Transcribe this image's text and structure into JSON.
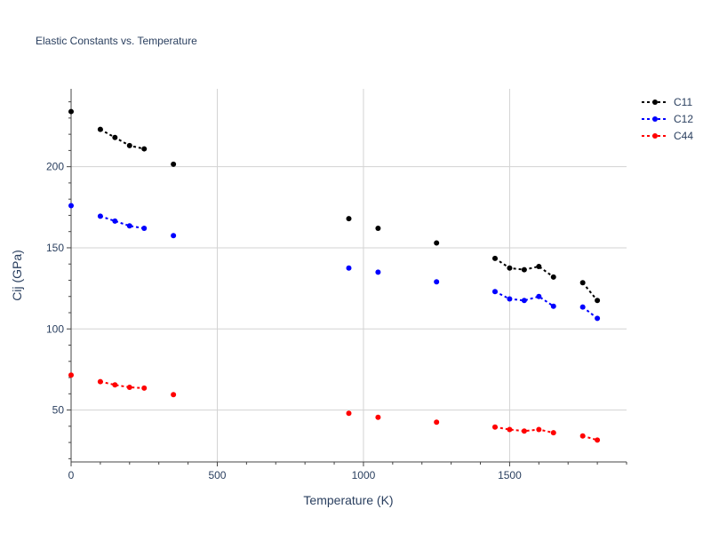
{
  "chart_data": {
    "type": "line",
    "title": "Elastic Constants vs. Temperature",
    "xlabel": "Temperature (K)",
    "ylabel": "Cij (GPa)",
    "xlim": [
      0,
      1900
    ],
    "ylim": [
      18,
      248
    ],
    "xticks": [
      0,
      500,
      1000,
      1500
    ],
    "yticks": [
      50,
      100,
      150,
      200
    ],
    "grid": true,
    "legend_position": "top-right",
    "series": [
      {
        "name": "C11",
        "color": "#000000",
        "segments": [
          [
            [
              0,
              234
            ]
          ],
          [
            [
              100,
              223
            ],
            [
              150,
              218
            ],
            [
              200,
              213
            ],
            [
              250,
              211
            ]
          ],
          [
            [
              350,
              201.5
            ]
          ],
          [
            [
              950,
              168
            ]
          ],
          [
            [
              1050,
              162
            ]
          ],
          [
            [
              1250,
              153
            ]
          ],
          [
            [
              1450,
              143.5
            ],
            [
              1500,
              137.5
            ],
            [
              1550,
              136.5
            ],
            [
              1600,
              138.5
            ],
            [
              1650,
              132
            ]
          ],
          [
            [
              1750,
              128.5
            ],
            [
              1800,
              117.5
            ]
          ]
        ]
      },
      {
        "name": "C12",
        "color": "#0000ff",
        "segments": [
          [
            [
              0,
              176
            ]
          ],
          [
            [
              100,
              169.5
            ],
            [
              150,
              166.5
            ],
            [
              200,
              163.5
            ],
            [
              250,
              162
            ]
          ],
          [
            [
              350,
              157.5
            ]
          ],
          [
            [
              950,
              137.5
            ]
          ],
          [
            [
              1050,
              135
            ]
          ],
          [
            [
              1250,
              129
            ]
          ],
          [
            [
              1450,
              123
            ],
            [
              1500,
              118.5
            ],
            [
              1550,
              117.5
            ],
            [
              1600,
              120
            ],
            [
              1650,
              114
            ]
          ],
          [
            [
              1750,
              113.5
            ],
            [
              1800,
              106.5
            ]
          ]
        ]
      },
      {
        "name": "C44",
        "color": "#ff0000",
        "segments": [
          [
            [
              0,
              71.5
            ]
          ],
          [
            [
              100,
              67.5
            ],
            [
              150,
              65.5
            ],
            [
              200,
              64
            ],
            [
              250,
              63.5
            ]
          ],
          [
            [
              350,
              59.5
            ]
          ],
          [
            [
              950,
              48
            ]
          ],
          [
            [
              1050,
              45.5
            ]
          ],
          [
            [
              1250,
              42.5
            ]
          ],
          [
            [
              1450,
              39.5
            ],
            [
              1500,
              38
            ],
            [
              1550,
              37
            ],
            [
              1600,
              38
            ],
            [
              1650,
              36
            ]
          ],
          [
            [
              1750,
              34
            ],
            [
              1800,
              31.5
            ]
          ]
        ]
      }
    ]
  }
}
